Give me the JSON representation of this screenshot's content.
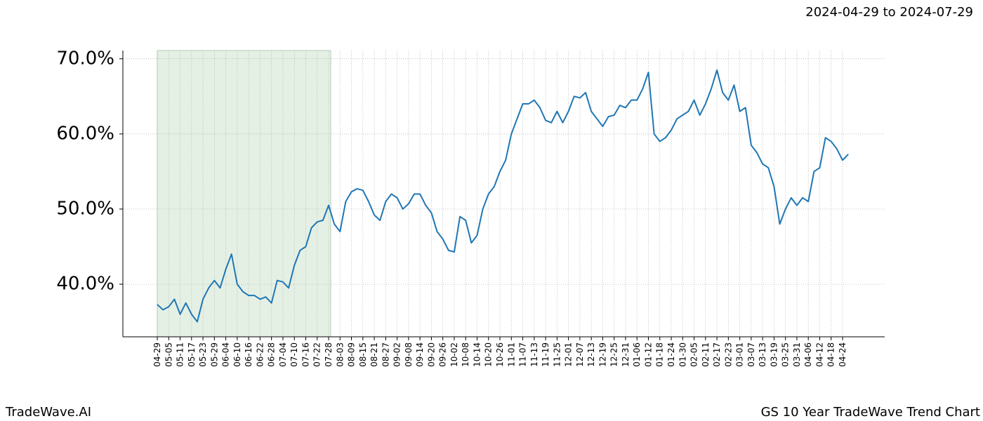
{
  "chart_data": {
    "type": "line",
    "title": "GS 10 Year TradeWave Trend Chart",
    "subtitle": "2024-04-29 to 2024-07-29",
    "source": "TradeWave.AI",
    "x": [
      "04-29",
      null,
      "05-05",
      null,
      "05-11",
      null,
      "05-17",
      null,
      "05-23",
      null,
      "05-29",
      null,
      "06-04",
      null,
      "06-10",
      null,
      "06-16",
      null,
      "06-22",
      null,
      "06-28",
      null,
      "07-04",
      null,
      "07-10",
      null,
      "07-16",
      null,
      "07-22",
      null,
      "07-28",
      null,
      "08-03",
      null,
      "08-09",
      null,
      "08-15",
      null,
      "08-21",
      null,
      "08-27",
      null,
      "09-02",
      null,
      "09-08",
      null,
      "09-14",
      null,
      "09-20",
      null,
      "09-26",
      null,
      "10-02",
      null,
      "10-08",
      null,
      "10-14",
      null,
      "10-20",
      null,
      "10-26",
      null,
      "11-01",
      null,
      "11-07",
      null,
      "11-13",
      null,
      "11-19",
      null,
      "11-25",
      null,
      "12-01",
      null,
      "12-07",
      null,
      "12-13",
      null,
      "12-19",
      null,
      "12-25",
      null,
      "12-31",
      null,
      "01-06",
      null,
      "01-12",
      null,
      "01-18",
      null,
      "01-24",
      null,
      "01-30",
      null,
      "02-05",
      null,
      "02-11",
      null,
      "02-17",
      null,
      "02-23",
      null,
      "03-01",
      null,
      "03-07",
      null,
      "03-13",
      null,
      "03-19",
      null,
      "03-25",
      null,
      "03-31",
      null,
      "04-06",
      null,
      "04-12",
      null,
      "04-18",
      null,
      "04-24",
      null
    ],
    "series": [
      {
        "name": "GS",
        "color": "#1f77b4",
        "values": [
          37.3,
          36.6,
          37.0,
          38.0,
          36.0,
          37.5,
          36.0,
          35.0,
          38.0,
          39.5,
          40.5,
          39.5,
          42.0,
          44.0,
          40.0,
          39.0,
          38.5,
          38.5,
          38.0,
          38.3,
          37.5,
          40.5,
          40.3,
          39.5,
          42.5,
          44.5,
          45.0,
          47.5,
          48.3,
          48.5,
          50.5,
          48.0,
          47.0,
          51.0,
          52.3,
          52.7,
          52.5,
          51.0,
          49.2,
          48.5,
          51.0,
          52.0,
          51.5,
          50.0,
          50.7,
          52.0,
          52.0,
          50.5,
          49.5,
          47.0,
          46.0,
          44.5,
          44.3,
          49.0,
          48.5,
          45.5,
          46.5,
          50.0,
          52.0,
          53.0,
          55.0,
          56.5,
          60.0,
          62.0,
          64.0,
          64.0,
          64.5,
          63.5,
          61.8,
          61.5,
          63.0,
          61.5,
          63.0,
          65.0,
          64.8,
          65.5,
          63.0,
          62.0,
          61.0,
          62.3,
          62.5,
          63.8,
          63.5,
          64.5,
          64.5,
          66.0,
          68.2,
          60.0,
          59.0,
          59.5,
          60.5,
          62.0,
          62.5,
          63.0,
          64.5,
          62.5,
          64.0,
          66.0,
          68.5,
          65.5,
          64.5,
          66.5,
          63.0,
          63.5,
          58.5,
          57.5,
          56.0,
          55.5,
          53.0,
          48.0,
          50.0,
          51.5,
          50.5,
          51.5,
          51.0,
          55.0,
          55.5,
          59.5,
          59.0,
          58.0,
          56.5,
          57.3
        ]
      }
    ],
    "ylim": [
      33.0,
      71.1
    ],
    "yticks": [
      {
        "value": 40,
        "label": "40.0%"
      },
      {
        "value": 50,
        "label": "50.0%"
      },
      {
        "value": 60,
        "label": "60.0%"
      },
      {
        "value": 70,
        "label": "70.0%"
      }
    ],
    "grid": true,
    "shade": {
      "from": "04-29",
      "to": "07-28",
      "color": "#e5f0e5"
    }
  }
}
